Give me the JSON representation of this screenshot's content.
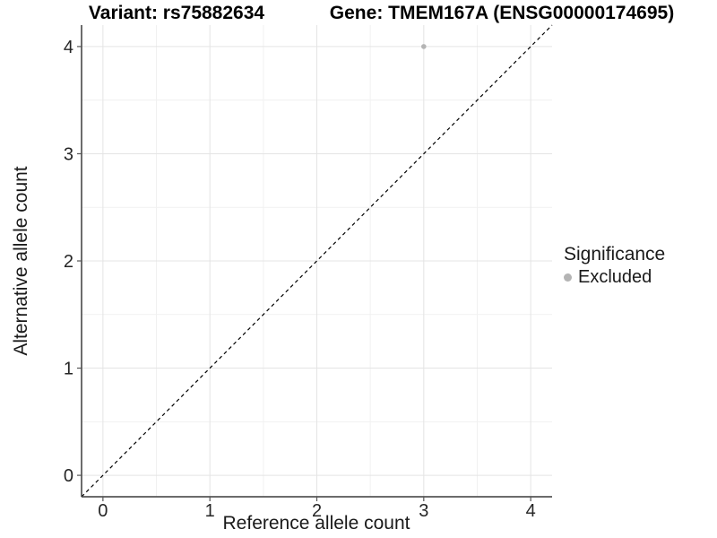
{
  "chart_data": {
    "type": "scatter",
    "title_left": "Variant: rs75882634",
    "title_right": "Gene: TMEM167A (ENSG00000174695)",
    "xlabel": "Reference allele count",
    "ylabel": "Alternative allele count",
    "xlim": [
      -0.2,
      4.2
    ],
    "ylim": [
      -0.2,
      4.2
    ],
    "x_ticks": [
      0,
      1,
      2,
      3,
      4
    ],
    "y_ticks": [
      0,
      1,
      2,
      3,
      4
    ],
    "x_minor_ticks": [
      0.5,
      1.5,
      2.5,
      3.5
    ],
    "y_minor_ticks": [
      0.5,
      1.5,
      2.5,
      3.5
    ],
    "grid": true,
    "legend_position": "right",
    "series": [
      {
        "name": "Excluded",
        "color": "#b4b4b4",
        "points": [
          {
            "x": 3,
            "y": 4
          }
        ]
      }
    ],
    "reference_line": {
      "slope": 1,
      "intercept": 0,
      "style": "dashed",
      "color": "#000000"
    },
    "legend": {
      "title": "Significance",
      "items": [
        {
          "label": "Excluded",
          "color": "#b4b4b4"
        }
      ]
    },
    "colors": {
      "background": "#ffffff",
      "grid_major": "#e4e4e4",
      "grid_minor": "#f1f1f1",
      "axis_line": "#3c3c3c",
      "tick_mark": "#555555",
      "tick_text": "#262626"
    }
  }
}
